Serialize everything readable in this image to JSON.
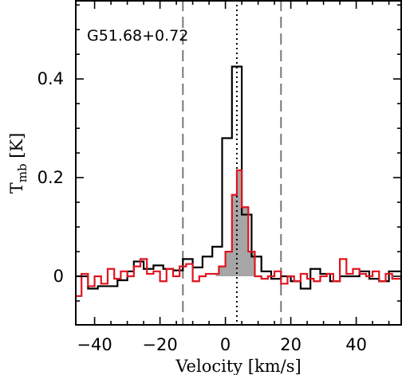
{
  "chart_data": {
    "type": "line",
    "title": "",
    "annotation": "G51.68+0.72",
    "xlabel": "Velocity [km/s]",
    "ylabel_main": "T",
    "ylabel_sub": "mb",
    "ylabel_unit": " [K]",
    "xlim": [
      -46,
      54
    ],
    "ylim": [
      -0.1,
      0.56
    ],
    "xticks": [
      -40,
      -20,
      0,
      20,
      40
    ],
    "xtick_labels": [
      "−40",
      "−20",
      "0",
      "20",
      "40"
    ],
    "yticks": [
      0,
      0.2,
      0.4
    ],
    "ytick_labels": [
      "0",
      "0.2",
      "0.4"
    ],
    "grid": false,
    "vlines_dashed": [
      -13,
      17
    ],
    "vline_dotted": 3.5,
    "colors": {
      "black_series": "#000000",
      "red_series": "#e0141e",
      "fill": "#a6a6a6"
    },
    "series": [
      {
        "color": "black",
        "step_edges": [
          -46,
          -42,
          -39,
          -33,
          -30,
          -28,
          -25,
          -22,
          -19,
          -16,
          -13,
          -10,
          -7,
          -4,
          -1,
          2,
          5,
          8,
          11,
          14,
          17,
          20,
          23,
          26,
          29,
          32,
          35,
          38,
          41,
          44,
          47,
          50,
          54
        ],
        "values": [
          0.0,
          -0.025,
          -0.02,
          -0.008,
          0.01,
          0.03,
          0.015,
          0.022,
          0.015,
          0.012,
          0.035,
          0.018,
          0.04,
          0.06,
          0.28,
          0.425,
          0.125,
          0.04,
          0.01,
          -0.005,
          0.0,
          -0.01,
          -0.025,
          0.015,
          0.005,
          -0.01,
          0.0,
          0.0,
          0.01,
          -0.005,
          -0.01,
          0.01
        ]
      },
      {
        "color": "red",
        "step_edges": [
          -46,
          -44,
          -42,
          -40,
          -38,
          -36,
          -34,
          -32,
          -30,
          -28,
          -26,
          -24,
          -22,
          -20,
          -18,
          -16,
          -14,
          -12,
          -10,
          -8,
          -6,
          -4,
          -2,
          0,
          2,
          3.5,
          5,
          7,
          9,
          11,
          13,
          15,
          17,
          19,
          21,
          23,
          25,
          27,
          29,
          31,
          33,
          35,
          37,
          39,
          41,
          43,
          45,
          47,
          49,
          51,
          54
        ],
        "values": [
          -0.04,
          0.005,
          -0.02,
          0.0,
          -0.015,
          0.015,
          -0.005,
          0.01,
          0.0,
          0.02,
          0.035,
          0.005,
          0.01,
          -0.01,
          0.015,
          0.0,
          0.02,
          0.025,
          -0.01,
          0.0,
          0.005,
          0.005,
          0.02,
          0.05,
          0.165,
          0.215,
          0.14,
          0.05,
          0.0,
          -0.005,
          0.0,
          0.01,
          -0.015,
          0.0,
          -0.01,
          0.005,
          -0.005,
          -0.01,
          0.0,
          0.005,
          -0.01,
          0.035,
          0.005,
          0.015,
          0.005,
          0.0,
          0.01,
          -0.01,
          0.005,
          -0.005
        ]
      }
    ],
    "filled_region": [
      -3,
      9
    ]
  }
}
